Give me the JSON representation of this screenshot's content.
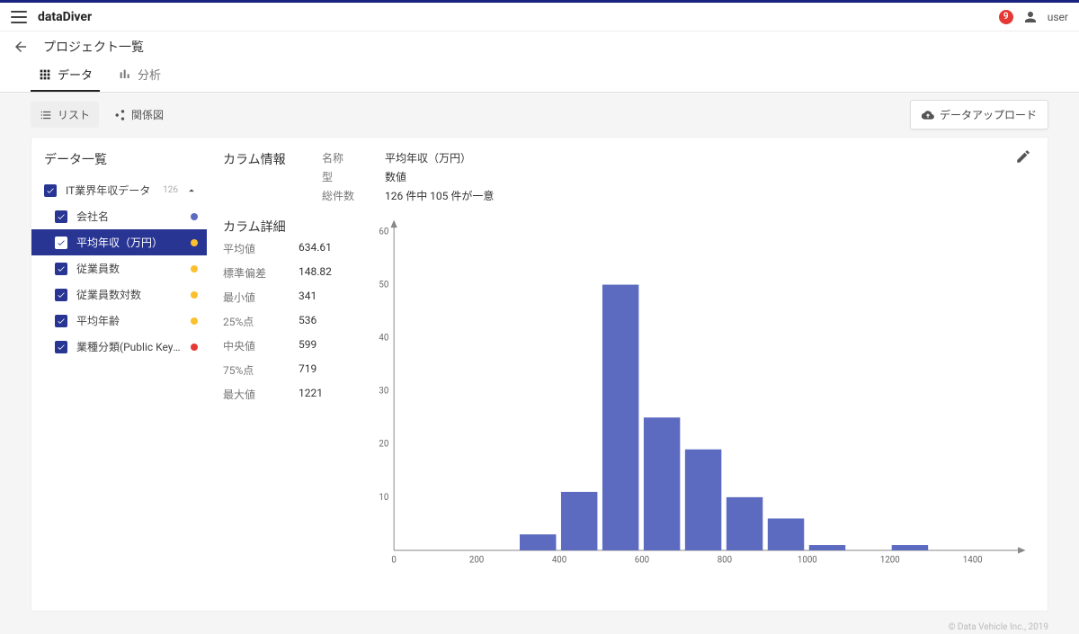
{
  "accent_color": "#1a237e",
  "header": {
    "app_title": "dataDiver",
    "badge_count": "9",
    "user_label": "user"
  },
  "breadcrumb": {
    "title": "プロジェクト一覧"
  },
  "tabs": {
    "data": {
      "label": "データ"
    },
    "analysis": {
      "label": "分析"
    }
  },
  "toolbar": {
    "list": "リスト",
    "relation": "関係図",
    "upload": "データアップロード"
  },
  "sidebar": {
    "title": "データ一覧",
    "root": {
      "label": "IT業界年収データ",
      "count": "126"
    },
    "items": [
      {
        "label": "会社名",
        "selected": false,
        "dot": "#5c6bc0"
      },
      {
        "label": "平均年収（万円）",
        "selected": true,
        "dot": "#fbc02d"
      },
      {
        "label": "従業員数",
        "selected": false,
        "dot": "#fbc02d"
      },
      {
        "label": "従業員数対数",
        "selected": false,
        "dot": "#fbc02d"
      },
      {
        "label": "平均年齢",
        "selected": false,
        "dot": "#fbc02d"
      },
      {
        "label": "業種分類(Public Keyによ…",
        "selected": false,
        "dot": "#e53935"
      }
    ]
  },
  "column_info": {
    "title": "カラム情報",
    "name_label": "名称",
    "name_value": "平均年収（万円）",
    "type_label": "型",
    "type_value": "数値",
    "count_label": "総件数",
    "count_value": "126 件中 105 件が一意"
  },
  "column_details": {
    "title": "カラム詳細",
    "stats": [
      {
        "label": "平均値",
        "value": "634.61"
      },
      {
        "label": "標準偏差",
        "value": "148.82"
      },
      {
        "label": "最小値",
        "value": "341"
      },
      {
        "label": "25%点",
        "value": "536"
      },
      {
        "label": "中央値",
        "value": "599"
      },
      {
        "label": "75%点",
        "value": "719"
      },
      {
        "label": "最大値",
        "value": "1221"
      }
    ]
  },
  "histogram": {
    "type": "histogram",
    "bar_color": "#5c6bc0",
    "axis_color": "#888",
    "label_color": "#666",
    "label_fontsize": 10,
    "xlim": [
      0,
      1500
    ],
    "ylim": [
      0,
      60
    ],
    "xtick_step": 200,
    "ytick_step": 10,
    "bin_width": 100,
    "bins": [
      {
        "x": 300,
        "count": 3
      },
      {
        "x": 400,
        "count": 11
      },
      {
        "x": 500,
        "count": 50
      },
      {
        "x": 600,
        "count": 25
      },
      {
        "x": 700,
        "count": 19
      },
      {
        "x": 800,
        "count": 10
      },
      {
        "x": 900,
        "count": 6
      },
      {
        "x": 1000,
        "count": 1
      },
      {
        "x": 1200,
        "count": 1
      }
    ]
  },
  "footer": {
    "copyright": "© Data Vehicle Inc., 2019"
  }
}
